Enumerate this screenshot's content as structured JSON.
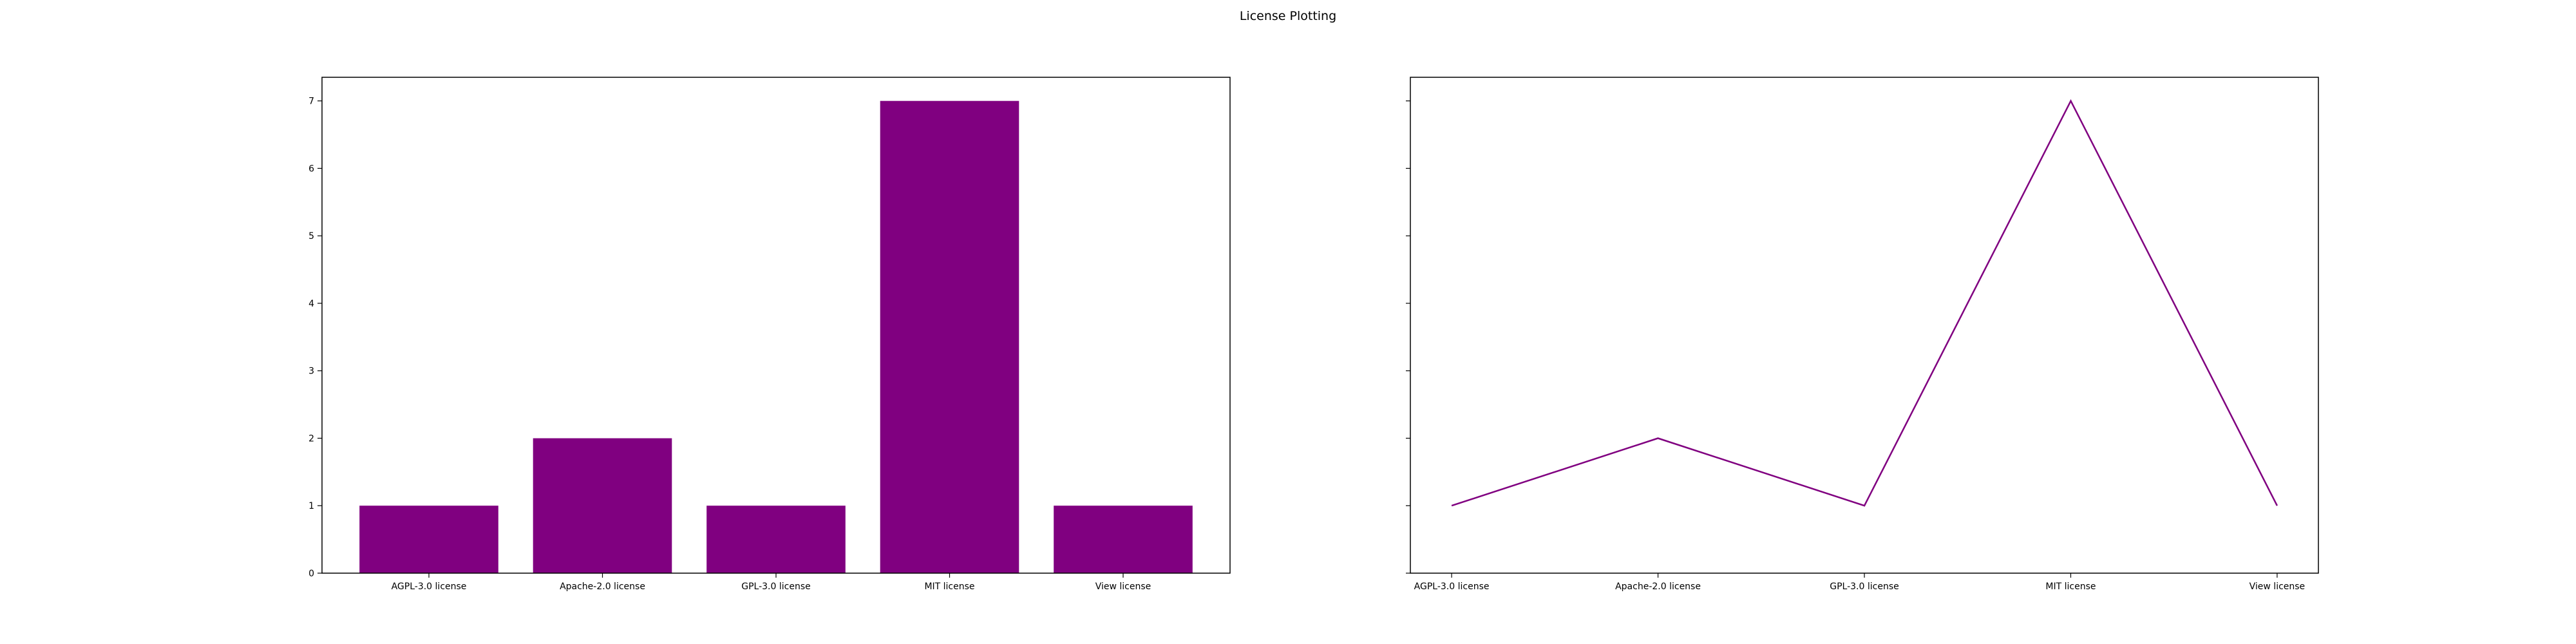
{
  "figure": {
    "title": "License Plotting"
  },
  "chart_data": [
    {
      "type": "bar",
      "categories": [
        "AGPL-3.0 license",
        "Apache-2.0 license",
        "GPL-3.0 license",
        "MIT license",
        "View license"
      ],
      "values": [
        1,
        2,
        1,
        7,
        1
      ],
      "ylim": [
        0,
        7.35
      ],
      "yticks": [
        0,
        1,
        2,
        3,
        4,
        5,
        6,
        7
      ],
      "color": "#800080",
      "grid": false,
      "title": "",
      "xlabel": "",
      "ylabel": ""
    },
    {
      "type": "line",
      "categories": [
        "AGPL-3.0 license",
        "Apache-2.0 license",
        "GPL-3.0 license",
        "MIT license",
        "View license"
      ],
      "values": [
        1,
        2,
        1,
        7,
        1
      ],
      "ylim": [
        0,
        7.35
      ],
      "shared_y": true,
      "color": "#800080",
      "grid": false,
      "title": "",
      "xlabel": "",
      "ylabel": ""
    }
  ]
}
